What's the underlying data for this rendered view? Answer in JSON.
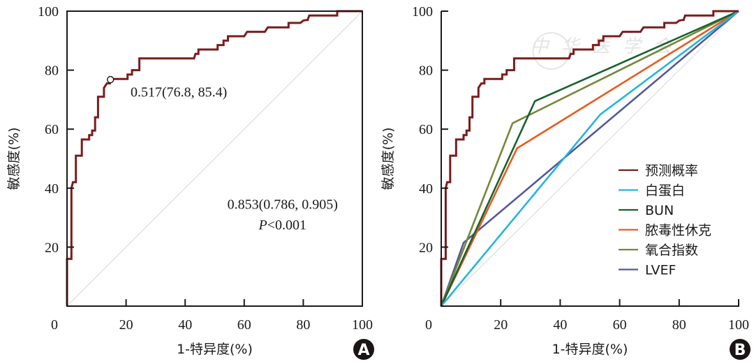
{
  "chart_data": [
    {
      "panel": "A",
      "type": "line",
      "xlabel": "1-特异度(%)",
      "ylabel": "敏感度(%)",
      "xlim": [
        0,
        100
      ],
      "ylim": [
        0,
        100
      ],
      "xticks": [
        "0",
        "20",
        "40",
        "60",
        "80",
        "100"
      ],
      "yticks": [
        "20",
        "40",
        "60",
        "80",
        "100"
      ],
      "reference_line": "diagonal",
      "series": [
        {
          "name": "预测概率",
          "color": "#7b1c1c",
          "step": true,
          "points": [
            [
              0,
              0
            ],
            [
              0,
              16
            ],
            [
              1.5,
              16
            ],
            [
              1.5,
              40
            ],
            [
              2,
              42
            ],
            [
              2,
              42
            ],
            [
              3,
              42
            ],
            [
              3,
              51
            ],
            [
              5,
              51
            ],
            [
              5,
              56.5
            ],
            [
              7.5,
              56.5
            ],
            [
              7.5,
              58
            ],
            [
              8.5,
              58
            ],
            [
              8.5,
              59.5
            ],
            [
              9.5,
              59.5
            ],
            [
              9.5,
              64
            ],
            [
              10.5,
              64
            ],
            [
              10.5,
              71
            ],
            [
              12.5,
              71
            ],
            [
              12.5,
              74
            ],
            [
              13.5,
              75.5
            ],
            [
              14.5,
              75.5
            ],
            [
              14.5,
              77
            ],
            [
              20.5,
              77
            ],
            [
              20.5,
              78.5
            ],
            [
              22,
              78.5
            ],
            [
              22,
              80
            ],
            [
              24.5,
              80
            ],
            [
              24.5,
              84
            ],
            [
              43,
              84
            ],
            [
              43.5,
              85.5
            ],
            [
              44.5,
              85.5
            ],
            [
              44.5,
              87
            ],
            [
              51,
              87
            ],
            [
              51,
              88.5
            ],
            [
              53,
              88.5
            ],
            [
              53,
              90
            ],
            [
              54.5,
              90
            ],
            [
              54.5,
              91.5
            ],
            [
              60,
              91.5
            ],
            [
              61,
              93
            ],
            [
              67,
              93
            ],
            [
              68,
              94.5
            ],
            [
              75,
              94.5
            ],
            [
              75,
              96
            ],
            [
              79,
              96
            ],
            [
              80,
              96.8
            ],
            [
              81,
              97
            ],
            [
              81.5,
              97
            ],
            [
              82,
              98.5
            ],
            [
              91.5,
              98.5
            ],
            [
              91.5,
              100
            ],
            [
              100,
              100
            ]
          ]
        }
      ],
      "annotations": {
        "cutoff_point": {
          "x": 14.7,
          "y": 76.8,
          "label": "0.517(76.8,  85.4)"
        },
        "auc": "0.853(0.786,  0.905)",
        "p_value_prefix": "P",
        "p_value": "<0.001"
      },
      "panel_label": "A"
    },
    {
      "panel": "B",
      "type": "line",
      "xlabel": "1-特异度(%)",
      "ylabel": "敏感度(%)",
      "xlim": [
        0,
        100
      ],
      "ylim": [
        0,
        100
      ],
      "xticks": [
        "0",
        "20",
        "40",
        "60",
        "80",
        "100"
      ],
      "yticks": [
        "20",
        "40",
        "60",
        "80",
        "100"
      ],
      "reference_line": "diagonal",
      "legend_position": "lower-right",
      "series": [
        {
          "name": "预测概率",
          "color": "#7b1c1c",
          "step": true,
          "points": [
            [
              0,
              0
            ],
            [
              0,
              16
            ],
            [
              1.5,
              16
            ],
            [
              1.5,
              40
            ],
            [
              2,
              42
            ],
            [
              2,
              42
            ],
            [
              3,
              42
            ],
            [
              3,
              51
            ],
            [
              5,
              51
            ],
            [
              5,
              56.5
            ],
            [
              7.5,
              56.5
            ],
            [
              7.5,
              58
            ],
            [
              8.5,
              58
            ],
            [
              8.5,
              59.5
            ],
            [
              9.5,
              59.5
            ],
            [
              9.5,
              64
            ],
            [
              10.5,
              64
            ],
            [
              10.5,
              71
            ],
            [
              12.5,
              71
            ],
            [
              12.5,
              74
            ],
            [
              13.5,
              75.5
            ],
            [
              14.5,
              75.5
            ],
            [
              14.5,
              77
            ],
            [
              20.5,
              77
            ],
            [
              20.5,
              78.5
            ],
            [
              22,
              78.5
            ],
            [
              22,
              80
            ],
            [
              24.5,
              80
            ],
            [
              24.5,
              84
            ],
            [
              43,
              84
            ],
            [
              43.5,
              85.5
            ],
            [
              44.5,
              85.5
            ],
            [
              44.5,
              87
            ],
            [
              51,
              87
            ],
            [
              51,
              88.5
            ],
            [
              53,
              88.5
            ],
            [
              53,
              90
            ],
            [
              54.5,
              90
            ],
            [
              54.5,
              91.5
            ],
            [
              60,
              91.5
            ],
            [
              61,
              93
            ],
            [
              67,
              93
            ],
            [
              68,
              94.5
            ],
            [
              75,
              94.5
            ],
            [
              75,
              96
            ],
            [
              79,
              96
            ],
            [
              80,
              96.8
            ],
            [
              81,
              97
            ],
            [
              81.5,
              97
            ],
            [
              82,
              98.5
            ],
            [
              91.5,
              98.5
            ],
            [
              91.5,
              100
            ],
            [
              100,
              100
            ]
          ]
        },
        {
          "name": "白蛋白",
          "color": "#25b4e0",
          "points": [
            [
              0,
              0
            ],
            [
              53.5,
              65
            ],
            [
              100,
              100
            ]
          ]
        },
        {
          "name": "BUN",
          "color": "#17622f",
          "points": [
            [
              0,
              0
            ],
            [
              31.5,
              69.5
            ],
            [
              100,
              100
            ]
          ]
        },
        {
          "name": "脓毒性休克",
          "color": "#ea5a1e",
          "points": [
            [
              0,
              0
            ],
            [
              25.5,
              53.5
            ],
            [
              100,
              100
            ]
          ]
        },
        {
          "name": "氧合指数",
          "color": "#75873a",
          "points": [
            [
              0,
              0
            ],
            [
              24,
              62
            ],
            [
              100,
              100
            ]
          ]
        },
        {
          "name": "LVEF",
          "color": "#55589a",
          "points": [
            [
              0,
              0
            ],
            [
              7.5,
              21.5
            ],
            [
              100,
              100
            ]
          ]
        }
      ],
      "panel_label": "B"
    }
  ],
  "watermark": "中华医学会"
}
